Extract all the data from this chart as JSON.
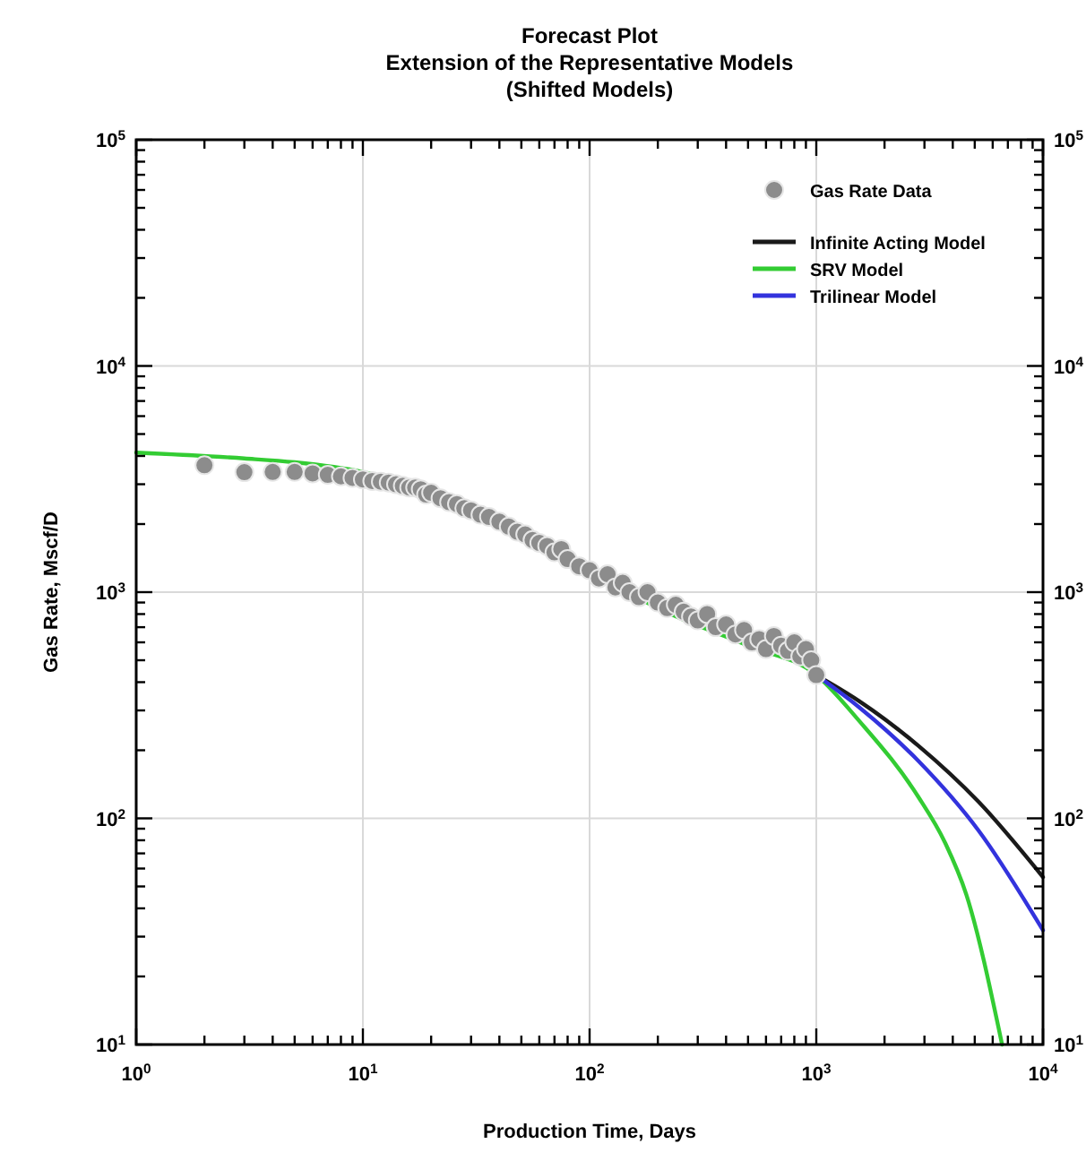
{
  "chart_data": {
    "type": "scatter",
    "title": "Forecast Plot",
    "subtitle": "Extension of the Representative Models\n(Shifted Models)",
    "xlabel": "Production Time, Days",
    "ylabel": "Gas Rate, Mscf/D",
    "log": "xy",
    "grid": true,
    "legend": "top right",
    "line_style": "solid",
    "xlim": [
      1,
      10000
    ],
    "ylim": [
      10,
      100000
    ],
    "xticks": [
      {
        "value": 1,
        "label": "10$^{0}$"
      },
      {
        "value": 2,
        "label": null
      },
      {
        "value": 3,
        "label": null
      },
      {
        "value": 4,
        "label": null
      },
      {
        "value": 5,
        "label": null
      },
      {
        "value": 6,
        "label": null
      },
      {
        "value": 7,
        "label": null
      },
      {
        "value": 8,
        "label": null
      },
      {
        "value": 9,
        "label": null
      },
      {
        "value": 10,
        "label": "10$^{1}$"
      },
      {
        "value": 20,
        "label": null
      },
      {
        "value": 30,
        "label": null
      },
      {
        "value": 40,
        "label": null
      },
      {
        "value": 50,
        "label": null
      },
      {
        "value": 60,
        "label": null
      },
      {
        "value": 70,
        "label": null
      },
      {
        "value": 80,
        "label": null
      },
      {
        "value": 90,
        "label": null
      },
      {
        "value": 100,
        "label": "10$^{2}$"
      },
      {
        "value": 200,
        "label": null
      },
      {
        "value": 300,
        "label": null
      },
      {
        "value": 400,
        "label": null
      },
      {
        "value": 500,
        "label": null
      },
      {
        "value": 600,
        "label": null
      },
      {
        "value": 700,
        "label": null
      },
      {
        "value": 800,
        "label": null
      },
      {
        "value": 900,
        "label": null
      },
      {
        "value": 1000,
        "label": "10$^{3}$"
      },
      {
        "value": 2000,
        "label": null
      },
      {
        "value": 3000,
        "label": null
      },
      {
        "value": 4000,
        "label": null
      },
      {
        "value": 5000,
        "label": null
      },
      {
        "value": 6000,
        "label": null
      },
      {
        "value": 7000,
        "label": null
      },
      {
        "value": 8000,
        "label": null
      },
      {
        "value": 9000,
        "label": null
      },
      {
        "value": 10000,
        "label": "10$^{4}$"
      }
    ],
    "yticks": [
      {
        "value": 10,
        "label": "10$^{1}$"
      },
      {
        "value": 20,
        "label": null
      },
      {
        "value": 30,
        "label": null
      },
      {
        "value": 40,
        "label": null
      },
      {
        "value": 50,
        "label": null
      },
      {
        "value": 60,
        "label": null
      },
      {
        "value": 70,
        "label": null
      },
      {
        "value": 80,
        "label": null
      },
      {
        "value": 90,
        "label": null
      },
      {
        "value": 100,
        "label": "10$^{2}$"
      },
      {
        "value": 200,
        "label": null
      },
      {
        "value": 300,
        "label": null
      },
      {
        "value": 400,
        "label": null
      },
      {
        "value": 500,
        "label": null
      },
      {
        "value": 600,
        "label": null
      },
      {
        "value": 700,
        "label": null
      },
      {
        "value": 800,
        "label": null
      },
      {
        "value": 900,
        "label": null
      },
      {
        "value": 1000,
        "label": "10$^{3}$"
      },
      {
        "value": 2000,
        "label": null
      },
      {
        "value": 3000,
        "label": null
      },
      {
        "value": 4000,
        "label": null
      },
      {
        "value": 5000,
        "label": null
      },
      {
        "value": 6000,
        "label": null
      },
      {
        "value": 7000,
        "label": null
      },
      {
        "value": 8000,
        "label": null
      },
      {
        "value": 9000,
        "label": null
      },
      {
        "value": 10000,
        "label": "10$^{4}$"
      },
      {
        "value": 20000,
        "label": null
      },
      {
        "value": 30000,
        "label": null
      },
      {
        "value": 40000,
        "label": null
      },
      {
        "value": 50000,
        "label": null
      },
      {
        "value": 60000,
        "label": null
      },
      {
        "value": 70000,
        "label": null
      },
      {
        "value": 80000,
        "label": null
      },
      {
        "value": 90000,
        "label": null
      },
      {
        "value": 100000,
        "label": "10$^{5}$"
      }
    ],
    "series": [
      {
        "name": "Infinite Acting Model",
        "type": "line",
        "color": "#1a1a1a",
        "marker": "none",
        "x": [
          1000,
          1545,
          2810,
          5210,
          10000
        ],
        "values": [
          430,
          330,
          210,
          118,
          55
        ]
      },
      {
        "name": "SRV Model",
        "type": "line",
        "color": "#33cc33",
        "marker": "none",
        "x": [
          1,
          3,
          5,
          10,
          20,
          50,
          100,
          200,
          500,
          1000,
          1545,
          2810,
          3700,
          4590,
          6600
        ],
        "values": [
          4140,
          3900,
          3750,
          3400,
          2800,
          1800,
          1250,
          850,
          580,
          430,
          270,
          125,
          78,
          46,
          10
        ]
      },
      {
        "name": "Trilinear Model",
        "type": "line",
        "color": "#3333dd",
        "marker": "none",
        "x": [
          1000,
          1545,
          2810,
          5210,
          10000
        ],
        "values": [
          430,
          310,
          180,
          88,
          32
        ]
      },
      {
        "name": "Gas Rate Data",
        "color": "#8c8c8c",
        "marker": "circle",
        "x": [
          2,
          3,
          4,
          5,
          6,
          7,
          8,
          9,
          10,
          11,
          12,
          13,
          14,
          15,
          16,
          17,
          18,
          19,
          20,
          22,
          24,
          26,
          28,
          30,
          33,
          36,
          40,
          44,
          48,
          52,
          56,
          60,
          65,
          70,
          75,
          80,
          90,
          100,
          110,
          120,
          130,
          140,
          150,
          165,
          180,
          200,
          220,
          240,
          260,
          280,
          300,
          330,
          360,
          400,
          440,
          480,
          520,
          560,
          600,
          650,
          700,
          750,
          800,
          850,
          900,
          950,
          1000
        ],
        "values": [
          3640,
          3390,
          3400,
          3400,
          3350,
          3300,
          3250,
          3200,
          3150,
          3100,
          3080,
          3050,
          3000,
          2950,
          2900,
          2900,
          2850,
          2700,
          2750,
          2600,
          2500,
          2450,
          2350,
          2300,
          2200,
          2150,
          2050,
          1950,
          1850,
          1800,
          1700,
          1650,
          1600,
          1500,
          1550,
          1400,
          1300,
          1250,
          1150,
          1200,
          1050,
          1100,
          1000,
          950,
          1000,
          900,
          850,
          880,
          820,
          780,
          750,
          800,
          700,
          720,
          650,
          680,
          600,
          620,
          560,
          640,
          580,
          550,
          600,
          520,
          560,
          500,
          430
        ]
      }
    ]
  }
}
